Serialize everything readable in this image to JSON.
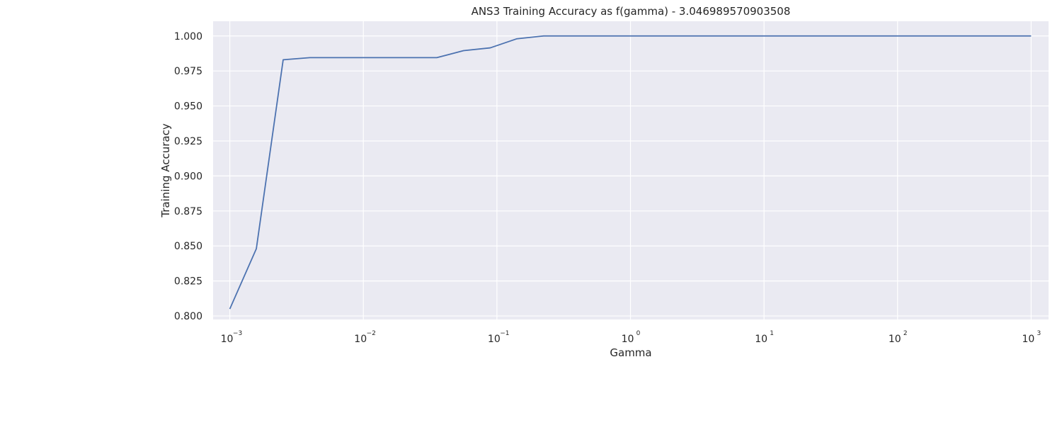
{
  "chart_data": {
    "type": "line",
    "title": "ANS3 Training Accuracy as f(gamma) - 3.046989570903508",
    "xlabel": "Gamma",
    "ylabel": "Training Accuracy",
    "xscale": "log",
    "xlim": [
      0.00075,
      1350
    ],
    "ylim": [
      0.7975,
      1.0105
    ],
    "grid": true,
    "background": "#eaeaf2",
    "grid_color": "#ffffff",
    "line_color": "#4c72b0",
    "x_ticks": [
      {
        "base": "10",
        "exp": "−3",
        "value": 0.001
      },
      {
        "base": "10",
        "exp": "−2",
        "value": 0.01
      },
      {
        "base": "10",
        "exp": "−1",
        "value": 0.1
      },
      {
        "base": "10",
        "exp": "0",
        "value": 1
      },
      {
        "base": "10",
        "exp": "1",
        "value": 10
      },
      {
        "base": "10",
        "exp": "2",
        "value": 100
      },
      {
        "base": "10",
        "exp": "3",
        "value": 1000
      }
    ],
    "y_ticks": [
      "0.800",
      "0.825",
      "0.850",
      "0.875",
      "0.900",
      "0.925",
      "0.950",
      "0.975",
      "1.000"
    ],
    "series": [
      {
        "x": [
          0.001,
          0.00158,
          0.00251,
          0.00398,
          0.00631,
          0.01,
          0.01585,
          0.02512,
          0.03548,
          0.05623,
          0.08913,
          0.14125,
          0.22387,
          0.35,
          1,
          10,
          100,
          1000
        ],
        "y": [
          0.805,
          0.848,
          0.983,
          0.9845,
          0.9845,
          0.9845,
          0.9845,
          0.9845,
          0.9845,
          0.9895,
          0.9915,
          0.998,
          1.0,
          1.0,
          1.0,
          1.0,
          1.0,
          1.0
        ]
      }
    ]
  }
}
